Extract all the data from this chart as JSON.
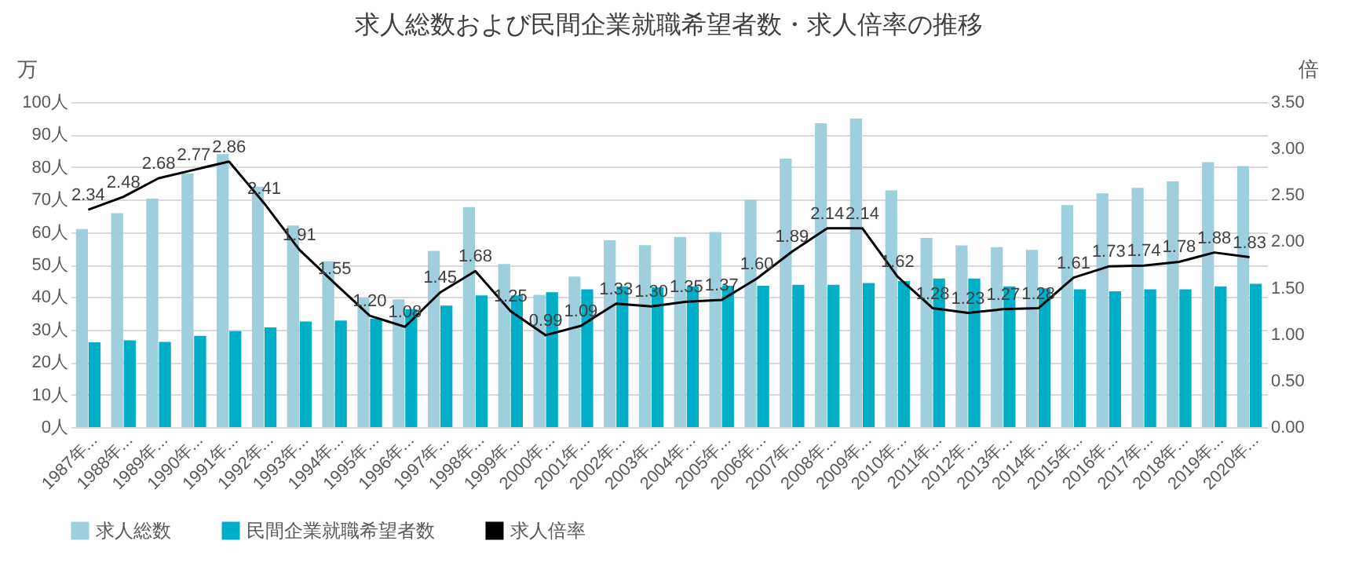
{
  "chart_data": {
    "type": "bar",
    "title": "求人総数および民間企業就職希望者数・求人倍率の推移",
    "ylabel": "万",
    "y2label": "倍",
    "categories": [
      "1987年...",
      "1988年...",
      "1989年...",
      "1990年...",
      "1991年...",
      "1992年...",
      "1993年...",
      "1994年...",
      "1995年...",
      "1996年...",
      "1997年...",
      "1998年...",
      "1999年...",
      "2000年...",
      "2001年...",
      "2002年...",
      "2003年...",
      "2004年...",
      "2005年...",
      "2006年...",
      "2007年...",
      "2008年...",
      "2009年...",
      "2010年...",
      "2011年...",
      "2012年...",
      "2013年...",
      "2014年...",
      "2015年...",
      "2016年...",
      "2017年...",
      "2018年...",
      "2019年...",
      "2020年..."
    ],
    "series": [
      {
        "name": "求人総数",
        "color": "#9fcfdd",
        "values": [
          60.9,
          65.8,
          70.3,
          78,
          84,
          74,
          62,
          51,
          39.8,
          39.3,
          54.2,
          67.7,
          50.2,
          40.7,
          46.3,
          57.5,
          56,
          58.5,
          60,
          69.9,
          82.6,
          93.5,
          94.9,
          72.8,
          58.2,
          55.9,
          55.4,
          54.5,
          68.3,
          71.9,
          73.6,
          75.6,
          81.5,
          80.3
        ]
      },
      {
        "name": "民間企業就職希望者数",
        "color": "#00aec7",
        "values": [
          26.1,
          26.7,
          26.2,
          28.1,
          29.5,
          30.7,
          32.5,
          32.8,
          33.4,
          36.3,
          37.4,
          40.5,
          40.5,
          41.5,
          42.4,
          43.3,
          43,
          43.3,
          43.5,
          43.5,
          43.8,
          43.8,
          44.3,
          44.9,
          45.7,
          45.7,
          43.3,
          42.7,
          42.4,
          41.8,
          42.4,
          42.4,
          43.3,
          44.1
        ]
      },
      {
        "name": "求人倍率",
        "type": "line",
        "axis": "y2",
        "color": "#000000",
        "values": [
          2.34,
          2.48,
          2.68,
          2.77,
          2.86,
          2.41,
          1.91,
          1.55,
          1.2,
          1.08,
          1.45,
          1.68,
          1.25,
          0.99,
          1.09,
          1.33,
          1.3,
          1.35,
          1.37,
          1.6,
          1.89,
          2.14,
          2.14,
          1.62,
          1.28,
          1.23,
          1.27,
          1.28,
          1.61,
          1.73,
          1.74,
          1.78,
          1.88,
          1.83
        ],
        "value_labels": [
          "2.34",
          "2.48",
          "2.68",
          "2.77",
          "2.86",
          "2.41",
          "1.91",
          "1.55",
          "1.20",
          "1.08",
          "1.45",
          "1.68",
          "1.25",
          "0.99",
          "1.09",
          "1.33",
          "1.30",
          "1.35",
          "1.37",
          "1.60",
          "1.89",
          "2.14",
          "2.14",
          "1.62",
          "1.28",
          "1.23",
          "1.27",
          "1.28",
          "1.61",
          "1.73",
          "1.74",
          "1.78",
          "1.88",
          "1.83"
        ]
      }
    ],
    "ylim": [
      0,
      100
    ],
    "yticks": [
      {
        "value": 0,
        "label": "0人"
      },
      {
        "value": 10,
        "label": "10人"
      },
      {
        "value": 20,
        "label": "20人"
      },
      {
        "value": 30,
        "label": "30人"
      },
      {
        "value": 40,
        "label": "40人"
      },
      {
        "value": 50,
        "label": "50人"
      },
      {
        "value": 60,
        "label": "60人"
      },
      {
        "value": 70,
        "label": "70人"
      },
      {
        "value": 80,
        "label": "80人"
      },
      {
        "value": 90,
        "label": "90人"
      },
      {
        "value": 100,
        "label": "100人"
      }
    ],
    "y2lim": [
      0,
      3.5
    ],
    "y2ticks": [
      {
        "value": 0,
        "label": "0.00"
      },
      {
        "value": 0.5,
        "label": "0.50"
      },
      {
        "value": 1,
        "label": "1.00"
      },
      {
        "value": 1.5,
        "label": "1.50"
      },
      {
        "value": 2,
        "label": "2.00"
      },
      {
        "value": 2.5,
        "label": "2.50"
      },
      {
        "value": 3,
        "label": "3.00"
      },
      {
        "value": 3.5,
        "label": "3.50"
      }
    ],
    "grid": "y",
    "legend": "bottom"
  }
}
